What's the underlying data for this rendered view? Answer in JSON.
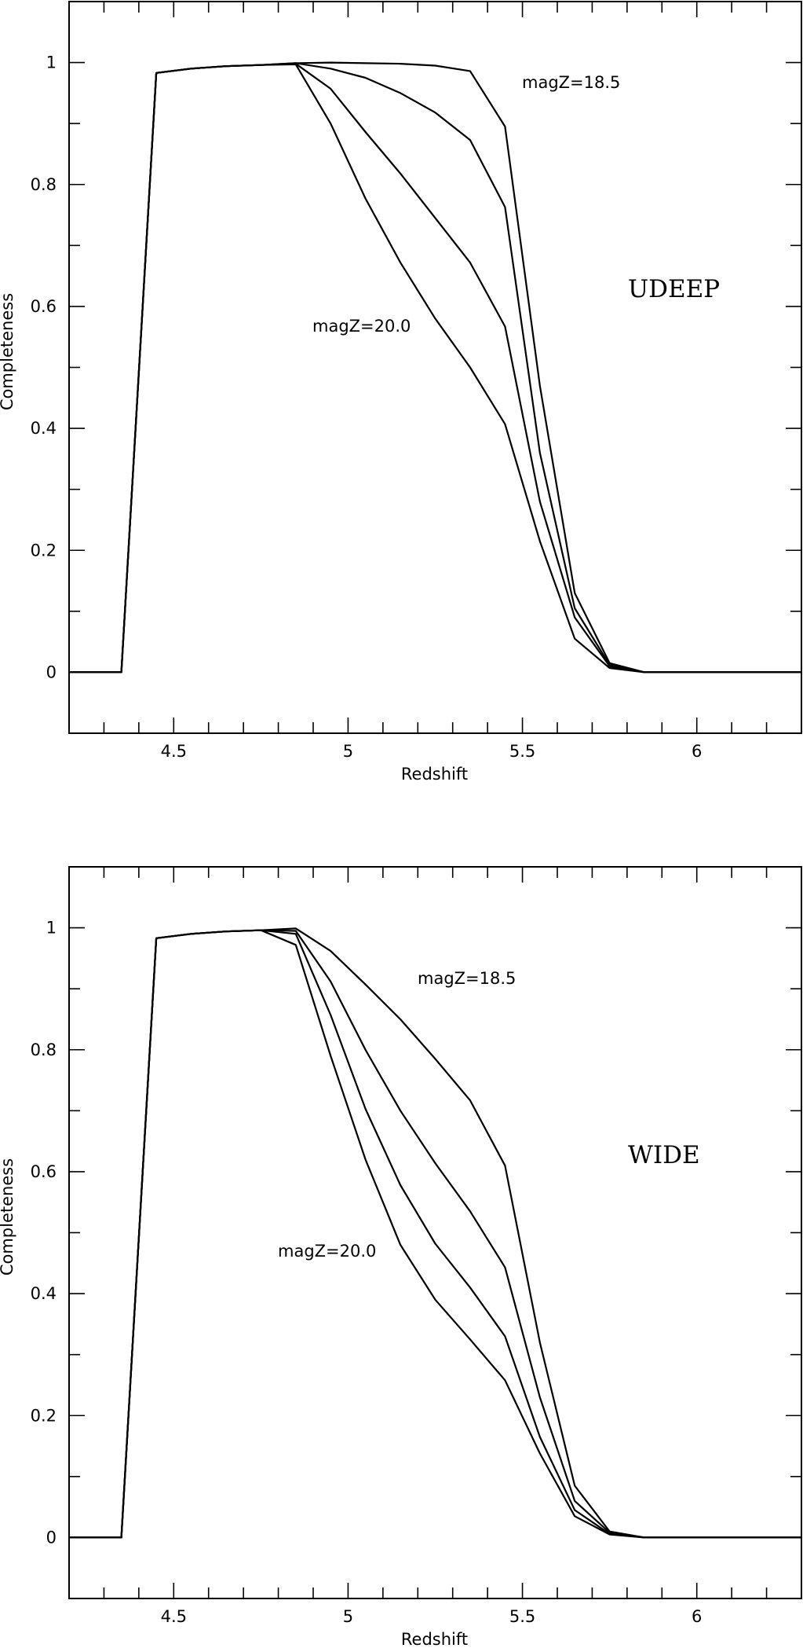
{
  "chart_data": [
    {
      "type": "line",
      "panel_label": "UDEEP",
      "xlabel": "Redshift",
      "ylabel": "Completeness",
      "xlim": [
        4.2,
        6.3
      ],
      "ylim": [
        -0.1,
        1.1
      ],
      "x_ticks": [
        4.5,
        5,
        5.5,
        6
      ],
      "y_ticks": [
        0,
        0.2,
        0.4,
        0.6,
        0.8,
        1
      ],
      "x_tick_labels": [
        "4.5",
        "5",
        "5.5",
        "6"
      ],
      "y_tick_labels": [
        "0",
        "0.2",
        "0.4",
        "0.6",
        "0.8",
        "1"
      ],
      "annotations": [
        "magZ=18.5",
        "magZ=20.0"
      ],
      "x": [
        4.2,
        4.35,
        4.45,
        4.55,
        4.65,
        4.75,
        4.85,
        4.95,
        5.05,
        5.15,
        5.25,
        5.35,
        5.45,
        5.55,
        5.65,
        5.75,
        5.85,
        5.95,
        6.05,
        6.15,
        6.3
      ],
      "series": [
        {
          "values": [
            0,
            0,
            0.983,
            0.99,
            0.994,
            0.996,
            0.999,
            1.0,
            0.999,
            0.998,
            0.995,
            0.986,
            0.895,
            0.47,
            0.13,
            0.015,
            0,
            0,
            0,
            0,
            0
          ]
        },
        {
          "values": [
            0,
            0,
            0.983,
            0.99,
            0.994,
            0.996,
            0.999,
            0.99,
            0.975,
            0.95,
            0.918,
            0.873,
            0.763,
            0.36,
            0.105,
            0.012,
            0,
            0,
            0,
            0,
            0
          ]
        },
        {
          "values": [
            0,
            0,
            0.983,
            0.99,
            0.994,
            0.996,
            0.998,
            0.957,
            0.886,
            0.818,
            0.745,
            0.672,
            0.567,
            0.28,
            0.09,
            0.01,
            0,
            0,
            0,
            0,
            0
          ]
        },
        {
          "values": [
            0,
            0,
            0.983,
            0.99,
            0.994,
            0.996,
            0.997,
            0.9,
            0.777,
            0.672,
            0.58,
            0.5,
            0.407,
            0.215,
            0.055,
            0.007,
            0,
            0,
            0,
            0,
            0
          ]
        }
      ]
    },
    {
      "type": "line",
      "panel_label": "WIDE",
      "xlabel": "Redshift",
      "ylabel": "Completeness",
      "xlim": [
        4.2,
        6.3
      ],
      "ylim": [
        -0.1,
        1.1
      ],
      "x_ticks": [
        4.5,
        5,
        5.5,
        6
      ],
      "y_ticks": [
        0,
        0.2,
        0.4,
        0.6,
        0.8,
        1
      ],
      "x_tick_labels": [
        "4.5",
        "5",
        "5.5",
        "6"
      ],
      "y_tick_labels": [
        "0",
        "0.2",
        "0.4",
        "0.6",
        "0.8",
        "1"
      ],
      "annotations": [
        "magZ=18.5",
        "magZ=20.0"
      ],
      "x": [
        4.2,
        4.35,
        4.45,
        4.55,
        4.65,
        4.75,
        4.85,
        4.95,
        5.05,
        5.15,
        5.25,
        5.35,
        5.45,
        5.55,
        5.65,
        5.75,
        5.85,
        5.95,
        6.05,
        6.15,
        6.3
      ],
      "series": [
        {
          "values": [
            0,
            0,
            0.983,
            0.99,
            0.994,
            0.996,
            0.999,
            0.962,
            0.907,
            0.85,
            0.785,
            0.717,
            0.61,
            0.32,
            0.085,
            0.01,
            0,
            0,
            0,
            0,
            0
          ]
        },
        {
          "values": [
            0,
            0,
            0.983,
            0.99,
            0.994,
            0.996,
            0.995,
            0.912,
            0.8,
            0.7,
            0.614,
            0.535,
            0.443,
            0.23,
            0.06,
            0.008,
            0,
            0,
            0,
            0,
            0
          ]
        },
        {
          "values": [
            0,
            0,
            0.983,
            0.99,
            0.994,
            0.996,
            0.99,
            0.857,
            0.703,
            0.578,
            0.482,
            0.41,
            0.33,
            0.165,
            0.045,
            0.006,
            0,
            0,
            0,
            0,
            0
          ]
        },
        {
          "values": [
            0,
            0,
            0.983,
            0.99,
            0.994,
            0.996,
            0.972,
            0.79,
            0.62,
            0.48,
            0.39,
            0.325,
            0.258,
            0.138,
            0.035,
            0.005,
            0,
            0,
            0,
            0,
            0
          ]
        }
      ]
    }
  ]
}
